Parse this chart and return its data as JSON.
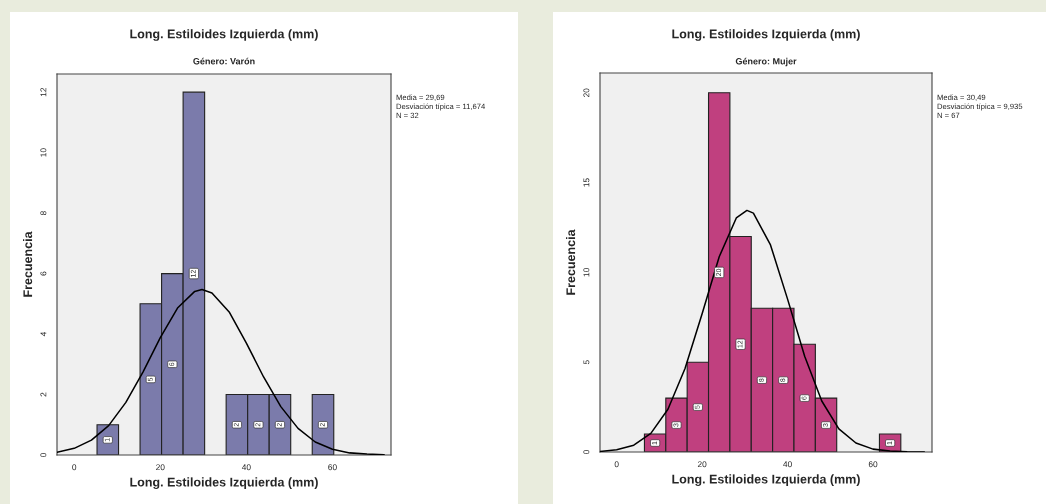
{
  "chart_data": [
    {
      "type": "histogram",
      "title": "Long. Estiloides Izquierda (mm)",
      "subtitle": "Género: Varón",
      "xlabel": "Long. Estiloides Izquierda (mm)",
      "ylabel": "Frecuencia",
      "bins": [
        5.3,
        10.3,
        15.3,
        20.3,
        25.3,
        30.3,
        35.3,
        40.3,
        45.3,
        50.3,
        55.3,
        60.3
      ],
      "values": [
        1,
        0,
        5,
        6,
        12,
        0,
        2,
        2,
        2,
        0,
        2
      ],
      "value_labels": [
        "1",
        null,
        "5",
        "6",
        "12",
        null,
        "2",
        "2",
        "2",
        null,
        "2"
      ],
      "color": "#7b7bab",
      "xlim": [
        -4,
        73.6
      ],
      "xticks": [
        0,
        20,
        40,
        60
      ],
      "ylim": [
        0,
        12.6
      ],
      "yticks": [
        0,
        2,
        4,
        6,
        8,
        10,
        12
      ],
      "grid": false,
      "annotations": [
        "Media = 29,69",
        "Desviación típica = 11,674",
        "N = 32"
      ],
      "series": [
        {
          "type": "line",
          "color": "#000000",
          "x": [
            -4,
            0,
            4,
            8,
            12,
            16,
            20,
            24,
            28,
            29.69,
            32,
            36,
            40,
            44,
            48,
            52,
            56,
            60,
            64,
            68,
            72
          ],
          "values": [
            0.09,
            0.22,
            0.49,
            0.97,
            1.74,
            2.75,
            3.88,
            4.86,
            5.41,
            5.47,
            5.36,
            4.73,
            3.7,
            2.58,
            1.6,
            0.88,
            0.43,
            0.19,
            0.07,
            0.03,
            0.01
          ]
        }
      ]
    },
    {
      "type": "histogram",
      "title": "Long. Estiloides Izquierda (mm)",
      "subtitle": "Género: Mujer",
      "xlabel": "Long. Estiloides Izquierda (mm)",
      "ylabel": "Frecuencia",
      "bins": [
        6.5,
        11.5,
        16.5,
        21.5,
        26.5,
        31.5,
        36.5,
        41.5,
        46.5,
        51.5,
        56.5,
        61.5,
        66.5
      ],
      "values": [
        1,
        3,
        5,
        20,
        12,
        8,
        8,
        6,
        3,
        0,
        0,
        1
      ],
      "value_labels": [
        "1",
        "3",
        "5",
        "20",
        "12",
        "8",
        "8",
        "6",
        "3",
        null,
        null,
        "1"
      ],
      "color": "#c0407f",
      "xlim": [
        -3.9,
        73.8
      ],
      "xticks": [
        0,
        20,
        40,
        60
      ],
      "ylim": [
        0,
        21.1
      ],
      "yticks": [
        0,
        5,
        10,
        15,
        20
      ],
      "grid": false,
      "annotations": [
        "Media = 30,49",
        "Desviación típica = 9,935",
        "N = 67"
      ],
      "series": [
        {
          "type": "line",
          "color": "#000000",
          "x": [
            -3.9,
            0,
            4,
            8,
            12,
            16,
            20,
            24,
            28,
            30.49,
            32,
            36,
            40,
            44,
            48,
            52,
            56,
            60,
            64,
            68,
            72
          ],
          "values": [
            0.03,
            0.12,
            0.38,
            1.04,
            2.38,
            4.65,
            7.7,
            10.87,
            13.03,
            13.45,
            13.3,
            11.53,
            8.51,
            5.33,
            2.84,
            1.29,
            0.5,
            0.16,
            0.05,
            0.01,
            0.0
          ]
        }
      ]
    }
  ]
}
